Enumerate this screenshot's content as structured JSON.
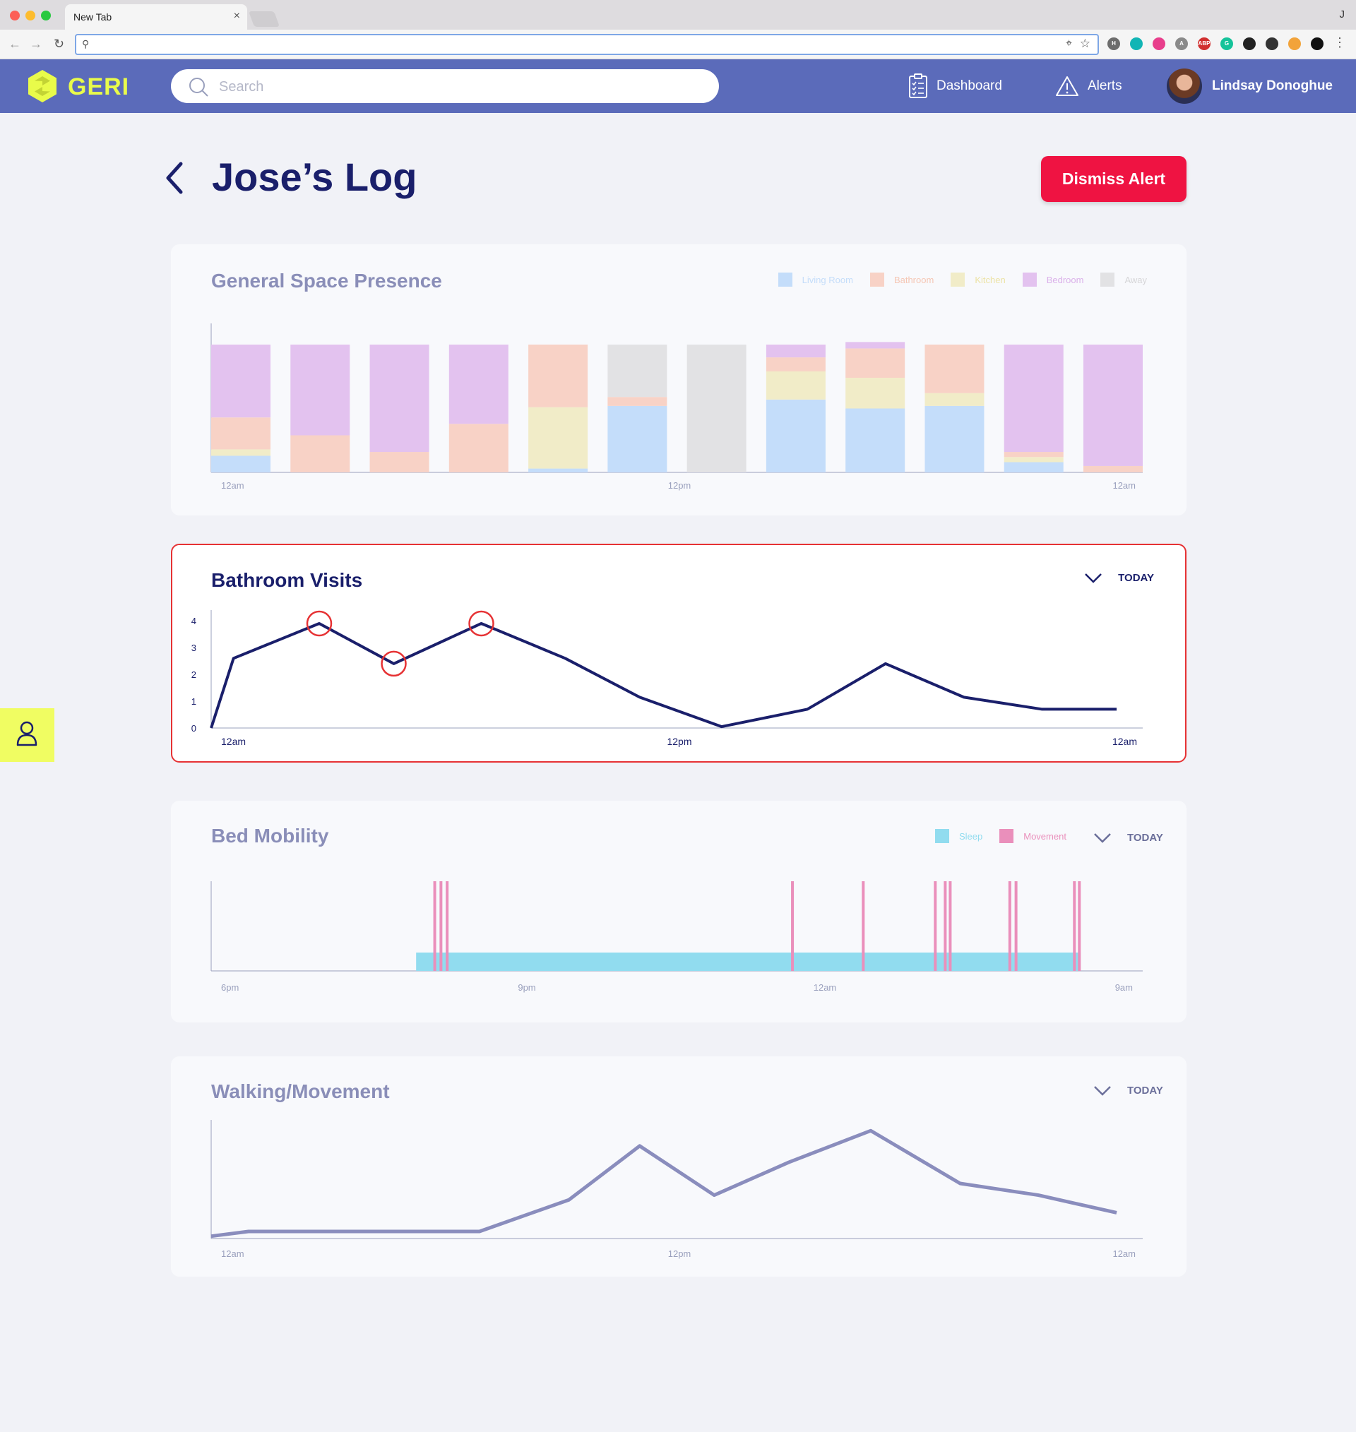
{
  "browser": {
    "tab_title": "New Tab",
    "tab_close": "×",
    "profile_letter": "J",
    "address_value": "",
    "extensions": [
      {
        "name": "ext-1",
        "color": "#6c6c6c",
        "label": "H"
      },
      {
        "name": "ext-2",
        "color": "#11b5b5",
        "label": ""
      },
      {
        "name": "ext-3",
        "color": "#e83e8c",
        "label": ""
      },
      {
        "name": "ext-4",
        "color": "#8a8a8a",
        "label": "A"
      },
      {
        "name": "ext-abp",
        "color": "#d12f2f",
        "label": "ABP"
      },
      {
        "name": "ext-grammarly",
        "color": "#15c39a",
        "label": "G"
      },
      {
        "name": "ext-7",
        "color": "#222222",
        "label": ""
      },
      {
        "name": "ext-8",
        "color": "#333333",
        "label": ""
      },
      {
        "name": "ext-9",
        "color": "#f2a33a",
        "label": ""
      },
      {
        "name": "ext-10",
        "color": "#111111",
        "label": ""
      }
    ]
  },
  "header": {
    "logo_text": "GERI",
    "search_placeholder": "Search",
    "dashboard_label": "Dashboard",
    "alerts_label": "Alerts",
    "user_name": "Lindsay Donoghue"
  },
  "page": {
    "title": "Jose’s Log",
    "dismiss_label": "Dismiss Alert"
  },
  "colors": {
    "accent": "#5b6bba",
    "brand_yellow": "#e9fb4a",
    "alert_red": "#ef1342",
    "navy": "#1a1f6b",
    "living_room": "#c4ddfa",
    "bathroom": "#f8d2c6",
    "kitchen": "#f1ecc8",
    "bedroom": "#e3c2ef",
    "away": "#e2e2e4",
    "sleep": "#91dcef",
    "movement": "#ea8fbb"
  },
  "space_presence": {
    "title": "General Space Presence",
    "legend": [
      "Living Room",
      "Bathroom",
      "Kitchen",
      "Bedroom",
      "Away"
    ],
    "x_ticks": [
      "12am",
      "12pm",
      "12am"
    ]
  },
  "bathroom_visits": {
    "title": "Bathroom Visits",
    "period": "TODAY",
    "y_ticks": [
      "0",
      "1",
      "2",
      "3",
      "4"
    ],
    "x_ticks": [
      "12am",
      "12pm",
      "12am"
    ]
  },
  "bed_mobility": {
    "title": "Bed Mobility",
    "period": "TODAY",
    "legend": [
      "Sleep",
      "Movement"
    ],
    "x_ticks": [
      "6pm",
      "9pm",
      "12am",
      "9am"
    ]
  },
  "walking": {
    "title": "Walking/Movement",
    "period": "TODAY",
    "x_ticks": [
      "12am",
      "12pm",
      "12am"
    ]
  },
  "chart_data": [
    {
      "type": "bar",
      "title": "General Space Presence",
      "stacked": true,
      "categories": [
        "1",
        "2",
        "3",
        "4",
        "5",
        "6",
        "7",
        "8",
        "9",
        "10",
        "11",
        "12"
      ],
      "series": [
        {
          "name": "Living Room",
          "values": [
            0.13,
            0,
            0,
            0,
            0.03,
            0.52,
            0,
            0.57,
            0.5,
            0.52,
            0.08,
            0
          ]
        },
        {
          "name": "Bathroom",
          "values": [
            0,
            0,
            0,
            0,
            0,
            0,
            0,
            0,
            0,
            0,
            0,
            0
          ]
        },
        {
          "name": "Kitchen",
          "values": [
            0.05,
            0,
            0,
            0,
            0.48,
            0,
            0,
            0.22,
            0.24,
            0.1,
            0.04,
            0
          ]
        },
        {
          "name": "Bathroom",
          "values": [
            0.25,
            0.29,
            0.16,
            0.38,
            0.49,
            0.07,
            0,
            0.11,
            0.23,
            0.38,
            0.04,
            0.05
          ]
        },
        {
          "name": "Bedroom",
          "values": [
            0.57,
            0.71,
            0.84,
            0.62,
            0,
            0,
            0,
            0.1,
            0.05,
            0,
            0.84,
            0.95
          ]
        },
        {
          "name": "Away",
          "values": [
            0,
            0,
            0,
            0,
            0,
            0.41,
            1,
            0,
            0,
            0,
            0,
            0
          ]
        }
      ],
      "ylim": [
        0,
        1
      ],
      "legend_position": "top-right",
      "x_tick_labels": [
        "12am",
        "12pm",
        "12am"
      ]
    },
    {
      "type": "line",
      "title": "Bathroom Visits",
      "x_hours": [
        0,
        0.6,
        2.9,
        4.9,
        7.25,
        9.5,
        11.5,
        13.7,
        16,
        18.1,
        20.2,
        22.3,
        24.3
      ],
      "values": [
        0,
        2.6,
        3.9,
        2.4,
        3.9,
        2.6,
        1.15,
        0.05,
        0.7,
        2.4,
        1.15,
        0.7,
        0.7
      ],
      "highlighted_points": [
        2,
        3,
        4
      ],
      "ylim": [
        0,
        4.4
      ],
      "xlim": [
        0,
        25
      ],
      "y_tick_labels": [
        "0",
        "1",
        "2",
        "3",
        "4"
      ],
      "x_tick_labels": [
        "12am",
        "12pm",
        "12am"
      ]
    },
    {
      "type": "bar",
      "title": "Bed Mobility",
      "xlim_hours_from_6pm": [
        0,
        15
      ],
      "sleep_interval": [
        3.3,
        14.0
      ],
      "movement_events": [
        3.6,
        3.7,
        3.8,
        9.36,
        10.5,
        11.66,
        11.82,
        11.9,
        12.86,
        12.96,
        13.9,
        13.98
      ],
      "legend": [
        "Sleep",
        "Movement"
      ],
      "legend_position": "top-right",
      "x_tick_labels": [
        "6pm",
        "9pm",
        "12am",
        "9am"
      ]
    },
    {
      "type": "line",
      "title": "Walking/Movement",
      "x_hours": [
        0,
        1,
        7.2,
        9.6,
        11.5,
        13.5,
        15.5,
        17.7,
        20.1,
        22.2,
        24.3
      ],
      "values": [
        0.02,
        0.06,
        0.06,
        0.33,
        0.79,
        0.37,
        0.65,
        0.92,
        0.47,
        0.37,
        0.22
      ],
      "ylim": [
        0,
        1
      ],
      "xlim": [
        0,
        25
      ],
      "x_tick_labels": [
        "12am",
        "12pm",
        "12am"
      ]
    }
  ]
}
